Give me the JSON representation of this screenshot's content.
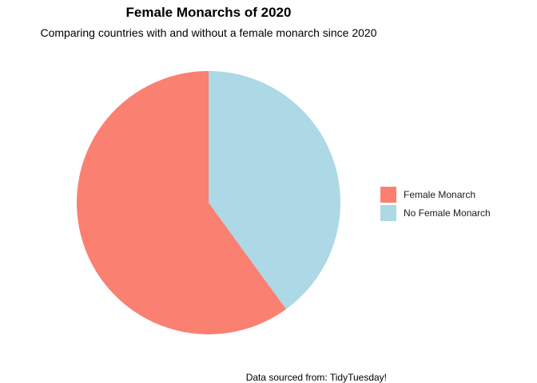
{
  "chart_data": {
    "type": "pie",
    "title": "Female Monarchs of 2020",
    "subtitle": "Comparing countries with and without a female monarch since 2020",
    "caption": "Data sourced from: TidyTuesday!",
    "categories": [
      "Female Monarch",
      "No Female Monarch"
    ],
    "values": [
      60,
      40
    ],
    "colors": [
      "#fa8072",
      "#add8e6"
    ],
    "legend_position": "right"
  }
}
